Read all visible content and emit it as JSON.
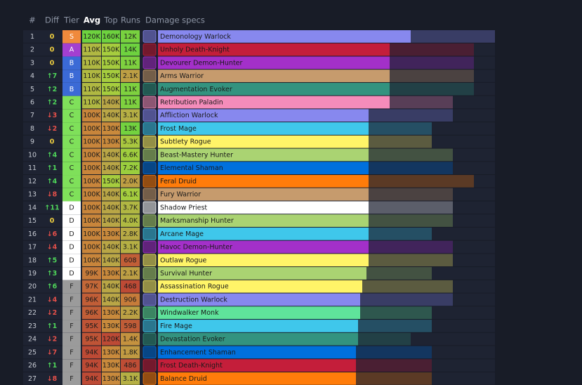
{
  "header": {
    "rank": "#",
    "diff": "Diff",
    "tier": "Tier",
    "avg": "Avg",
    "top": "Top",
    "runs": "Runs",
    "spec": "Damage specs"
  },
  "tier_colors": {
    "S": "#f08a3c",
    "A": "#a33fd0",
    "B": "#3b6ad6",
    "C": "#7fe05a",
    "D": "#ffffff",
    "F": "#9b9b9b"
  },
  "rows": [
    {
      "rank": 1,
      "diff": "0",
      "tier": "S",
      "avg": {
        "value": 120000,
        "label": "120K"
      },
      "top": {
        "value": 160000,
        "label": "160K"
      },
      "runs": {
        "value": 12000,
        "label": "12K"
      },
      "spec": "Demonology Warlock",
      "color": "#8788ee"
    },
    {
      "rank": 2,
      "diff": "0",
      "tier": "A",
      "avg": {
        "value": 110000,
        "label": "110K"
      },
      "top": {
        "value": 150000,
        "label": "150K"
      },
      "runs": {
        "value": 14000,
        "label": "14K"
      },
      "spec": "Unholy Death-Knight",
      "color": "#c41e3a"
    },
    {
      "rank": 3,
      "diff": "0",
      "tier": "B",
      "avg": {
        "value": 110000,
        "label": "110K"
      },
      "top": {
        "value": 150000,
        "label": "150K"
      },
      "runs": {
        "value": 11000,
        "label": "11K"
      },
      "spec": "Devourer Demon-Hunter",
      "color": "#a330c9"
    },
    {
      "rank": 4,
      "diff": "↑7",
      "tier": "B",
      "avg": {
        "value": 110000,
        "label": "110K"
      },
      "top": {
        "value": 150000,
        "label": "150K"
      },
      "runs": {
        "value": 2100,
        "label": "2.1K"
      },
      "spec": "Arms Warrior",
      "color": "#c69b6d"
    },
    {
      "rank": 5,
      "diff": "↑2",
      "tier": "B",
      "avg": {
        "value": 110000,
        "label": "110K"
      },
      "top": {
        "value": 150000,
        "label": "150K"
      },
      "runs": {
        "value": 11000,
        "label": "11K"
      },
      "spec": "Augmentation Evoker",
      "color": "#33937f"
    },
    {
      "rank": 6,
      "diff": "↑2",
      "tier": "C",
      "avg": {
        "value": 110000,
        "label": "110K"
      },
      "top": {
        "value": 140000,
        "label": "140K"
      },
      "runs": {
        "value": 11000,
        "label": "11K"
      },
      "spec": "Retribution Paladin",
      "color": "#f48cba"
    },
    {
      "rank": 7,
      "diff": "↓3",
      "tier": "C",
      "avg": {
        "value": 100000,
        "label": "100K"
      },
      "top": {
        "value": 140000,
        "label": "140K"
      },
      "runs": {
        "value": 3100,
        "label": "3.1K"
      },
      "spec": "Affliction Warlock",
      "color": "#8788ee"
    },
    {
      "rank": 8,
      "diff": "↓2",
      "tier": "C",
      "avg": {
        "value": 100000,
        "label": "100K"
      },
      "top": {
        "value": 130000,
        "label": "130K"
      },
      "runs": {
        "value": 13000,
        "label": "13K"
      },
      "spec": "Frost Mage",
      "color": "#3fc7eb"
    },
    {
      "rank": 9,
      "diff": "0",
      "tier": "C",
      "avg": {
        "value": 100000,
        "label": "100K"
      },
      "top": {
        "value": 130000,
        "label": "130K"
      },
      "runs": {
        "value": 5300,
        "label": "5.3K"
      },
      "spec": "Subtlety Rogue",
      "color": "#fff468"
    },
    {
      "rank": 10,
      "diff": "↑4",
      "tier": "C",
      "avg": {
        "value": 100000,
        "label": "100K"
      },
      "top": {
        "value": 140000,
        "label": "140K"
      },
      "runs": {
        "value": 6600,
        "label": "6.6K"
      },
      "spec": "Beast-Mastery Hunter",
      "color": "#aad372"
    },
    {
      "rank": 11,
      "diff": "↑1",
      "tier": "C",
      "avg": {
        "value": 100000,
        "label": "100K"
      },
      "top": {
        "value": 140000,
        "label": "140K"
      },
      "runs": {
        "value": 7200,
        "label": "7.2K"
      },
      "spec": "Elemental Shaman",
      "color": "#0070dd"
    },
    {
      "rank": 12,
      "diff": "↑4",
      "tier": "C",
      "avg": {
        "value": 100000,
        "label": "100K"
      },
      "top": {
        "value": 150000,
        "label": "150K"
      },
      "runs": {
        "value": 2000,
        "label": "2.0K"
      },
      "spec": "Feral Druid",
      "color": "#ff7c0a"
    },
    {
      "rank": 13,
      "diff": "↓8",
      "tier": "C",
      "avg": {
        "value": 100000,
        "label": "100K"
      },
      "top": {
        "value": 140000,
        "label": "140K"
      },
      "runs": {
        "value": 6100,
        "label": "6.1K"
      },
      "spec": "Fury Warrior",
      "color": "#c69b6d"
    },
    {
      "rank": 14,
      "diff": "↑11",
      "tier": "D",
      "avg": {
        "value": 100000,
        "label": "100K"
      },
      "top": {
        "value": 140000,
        "label": "140K"
      },
      "runs": {
        "value": 3700,
        "label": "3.7K"
      },
      "spec": "Shadow Priest",
      "color": "#ffffff"
    },
    {
      "rank": 15,
      "diff": "0",
      "tier": "D",
      "avg": {
        "value": 100000,
        "label": "100K"
      },
      "top": {
        "value": 140000,
        "label": "140K"
      },
      "runs": {
        "value": 4000,
        "label": "4.0K"
      },
      "spec": "Marksmanship Hunter",
      "color": "#aad372"
    },
    {
      "rank": 16,
      "diff": "↓6",
      "tier": "D",
      "avg": {
        "value": 100000,
        "label": "100K"
      },
      "top": {
        "value": 130000,
        "label": "130K"
      },
      "runs": {
        "value": 2800,
        "label": "2.8K"
      },
      "spec": "Arcane Mage",
      "color": "#3fc7eb"
    },
    {
      "rank": 17,
      "diff": "↓4",
      "tier": "D",
      "avg": {
        "value": 100000,
        "label": "100K"
      },
      "top": {
        "value": 140000,
        "label": "140K"
      },
      "runs": {
        "value": 3100,
        "label": "3.1K"
      },
      "spec": "Havoc Demon-Hunter",
      "color": "#a330c9"
    },
    {
      "rank": 18,
      "diff": "↑5",
      "tier": "D",
      "avg": {
        "value": 100000,
        "label": "100K"
      },
      "top": {
        "value": 140000,
        "label": "140K"
      },
      "runs": {
        "value": 608,
        "label": "608"
      },
      "spec": "Outlaw Rogue",
      "color": "#fff468"
    },
    {
      "rank": 19,
      "diff": "↑3",
      "tier": "D",
      "avg": {
        "value": 99000,
        "label": "99K"
      },
      "top": {
        "value": 130000,
        "label": "130K"
      },
      "runs": {
        "value": 2100,
        "label": "2.1K"
      },
      "spec": "Survival Hunter",
      "color": "#aad372"
    },
    {
      "rank": 20,
      "diff": "↑6",
      "tier": "F",
      "avg": {
        "value": 97000,
        "label": "97K"
      },
      "top": {
        "value": 140000,
        "label": "140K"
      },
      "runs": {
        "value": 468,
        "label": "468"
      },
      "spec": "Assassination Rogue",
      "color": "#fff468"
    },
    {
      "rank": 21,
      "diff": "↓4",
      "tier": "F",
      "avg": {
        "value": 96000,
        "label": "96K"
      },
      "top": {
        "value": 140000,
        "label": "140K"
      },
      "runs": {
        "value": 906,
        "label": "906"
      },
      "spec": "Destruction Warlock",
      "color": "#8788ee"
    },
    {
      "rank": 22,
      "diff": "↓2",
      "tier": "F",
      "avg": {
        "value": 96000,
        "label": "96K"
      },
      "top": {
        "value": 130000,
        "label": "130K"
      },
      "runs": {
        "value": 2200,
        "label": "2.2K"
      },
      "spec": "Windwalker Monk",
      "color": "#5fe39b"
    },
    {
      "rank": 23,
      "diff": "↑1",
      "tier": "F",
      "avg": {
        "value": 95000,
        "label": "95K"
      },
      "top": {
        "value": 130000,
        "label": "130K"
      },
      "runs": {
        "value": 598,
        "label": "598"
      },
      "spec": "Fire Mage",
      "color": "#3fc7eb"
    },
    {
      "rank": 24,
      "diff": "↓2",
      "tier": "F",
      "avg": {
        "value": 95000,
        "label": "95K"
      },
      "top": {
        "value": 120000,
        "label": "120K"
      },
      "runs": {
        "value": 1400,
        "label": "1.4K"
      },
      "spec": "Devastation Evoker",
      "color": "#33937f"
    },
    {
      "rank": 25,
      "diff": "↓7",
      "tier": "F",
      "avg": {
        "value": 94000,
        "label": "94K"
      },
      "top": {
        "value": 130000,
        "label": "130K"
      },
      "runs": {
        "value": 1800,
        "label": "1.8K"
      },
      "spec": "Enhancement Shaman",
      "color": "#0070dd"
    },
    {
      "rank": 26,
      "diff": "↑1",
      "tier": "F",
      "avg": {
        "value": 94000,
        "label": "94K"
      },
      "top": {
        "value": 130000,
        "label": "130K"
      },
      "runs": {
        "value": 486,
        "label": "486"
      },
      "spec": "Frost Death-Knight",
      "color": "#c41e3a"
    },
    {
      "rank": 27,
      "diff": "↓8",
      "tier": "F",
      "avg": {
        "value": 94000,
        "label": "94K"
      },
      "top": {
        "value": 130000,
        "label": "130K"
      },
      "runs": {
        "value": 3100,
        "label": "3.1K"
      },
      "spec": "Balance Druid",
      "color": "#ff7c0a"
    }
  ]
}
